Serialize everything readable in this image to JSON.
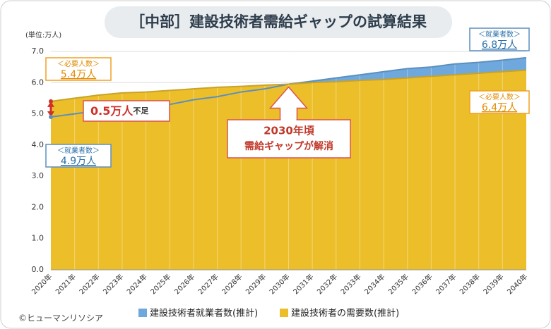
{
  "chart_data": {
    "type": "area",
    "title": "［中部］建設技術者需給ギャップの試算結果",
    "unit_label": "(単位:万人)",
    "categories": [
      "2020年",
      "2021年",
      "2022年",
      "2023年",
      "2024年",
      "2025年",
      "2026年",
      "2027年",
      "2028年",
      "2029年",
      "2030年",
      "2031年",
      "2032年",
      "2033年",
      "2034年",
      "2035年",
      "2036年",
      "2037年",
      "2038年",
      "2039年",
      "2040年"
    ],
    "series": [
      {
        "name": "建設技術者就業者数(推計)",
        "color": "#6fa8dc",
        "line_color": "#5b8fbf",
        "values": [
          4.9,
          5.0,
          5.1,
          5.15,
          5.2,
          5.3,
          5.45,
          5.55,
          5.7,
          5.8,
          5.95,
          6.05,
          6.15,
          6.25,
          6.35,
          6.45,
          6.5,
          6.6,
          6.65,
          6.72,
          6.8
        ]
      },
      {
        "name": "建設技術者の需要数(推計)",
        "color": "#ecbf2a",
        "line_color": "#c9a227",
        "values": [
          5.4,
          5.5,
          5.6,
          5.67,
          5.7,
          5.75,
          5.8,
          5.85,
          5.88,
          5.92,
          5.95,
          6.0,
          6.03,
          6.07,
          6.1,
          6.15,
          6.2,
          6.25,
          6.3,
          6.35,
          6.4
        ]
      }
    ],
    "ylim": [
      0,
      7
    ],
    "yticks": [
      {
        "value": 0,
        "label": "0.0"
      },
      {
        "value": 1,
        "label": "1.0"
      },
      {
        "value": 2,
        "label": "2.0"
      },
      {
        "value": 3,
        "label": "3.0"
      },
      {
        "value": 4,
        "label": "4.0"
      },
      {
        "value": 5,
        "label": "5.0"
      },
      {
        "value": 6,
        "label": "6.0"
      },
      {
        "value": 7,
        "label": "7.0"
      }
    ],
    "grid": true,
    "annotations": [
      {
        "label": "＜必要人数＞",
        "text": "5.4万人"
      },
      {
        "label": "＜就業者数＞",
        "text": "4.9万人"
      },
      {
        "text": "0.5万人",
        "suffix": "不足"
      },
      {
        "label": "2030年頃",
        "text": "需給ギャップが解消"
      },
      {
        "label": "＜就業者数＞",
        "text": "6.8万人"
      },
      {
        "label": "＜必要人数＞",
        "text": "6.4万人"
      }
    ],
    "credit": "©ヒューマンリソシア"
  }
}
